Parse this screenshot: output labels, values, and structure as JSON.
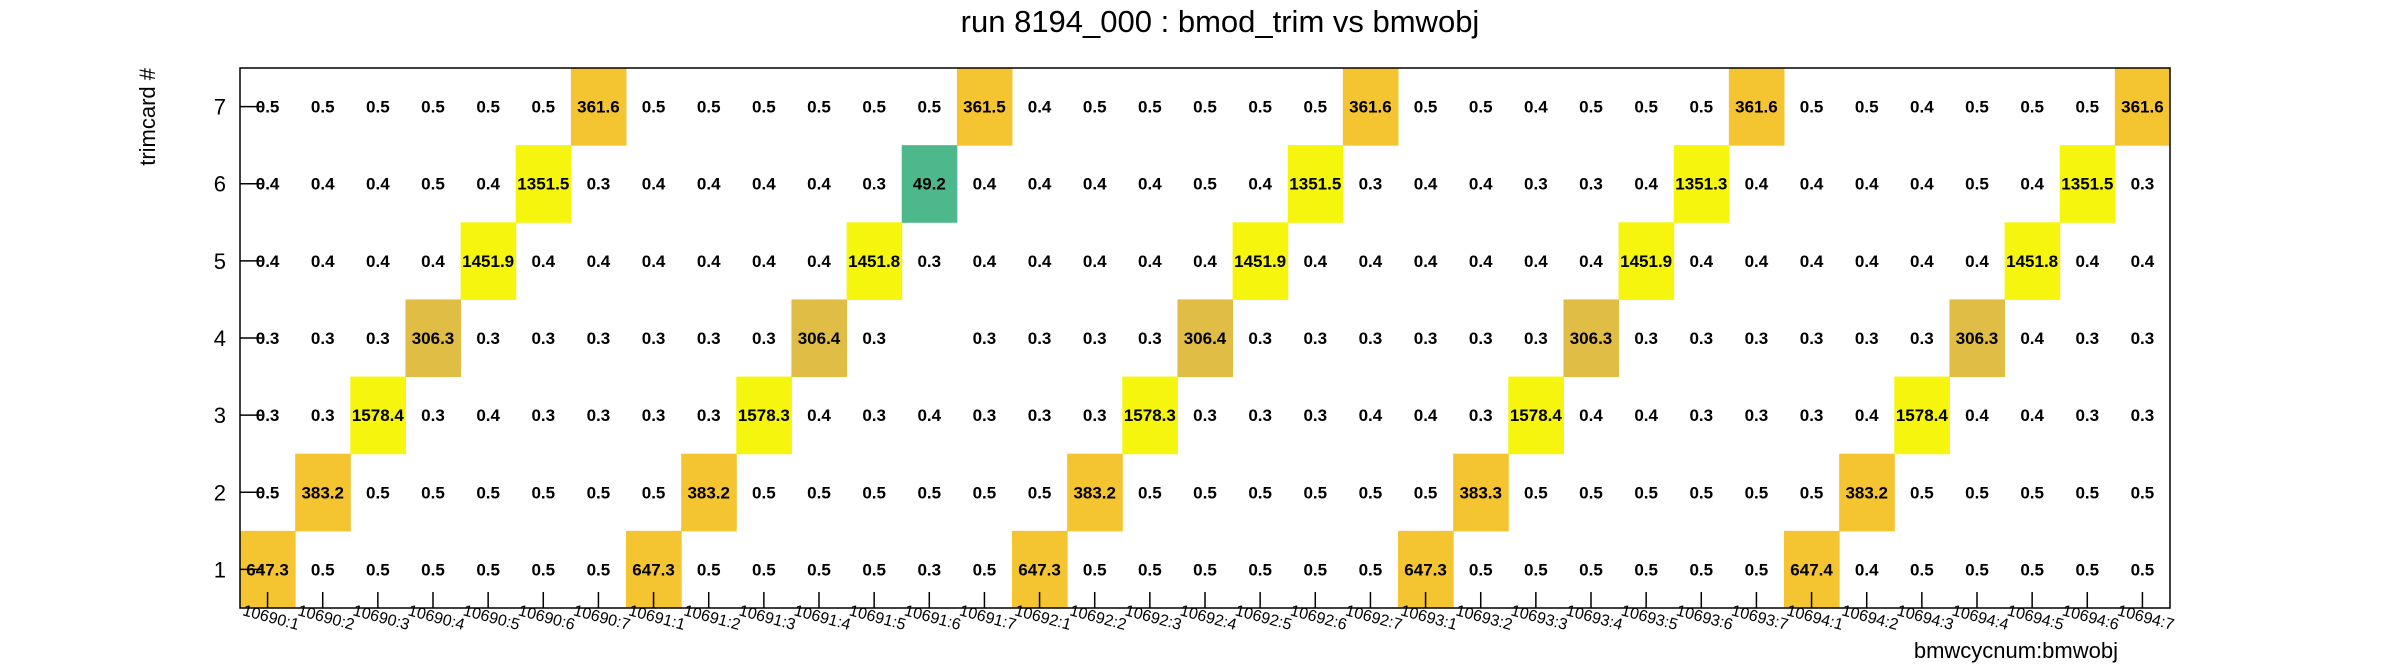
{
  "chart_data": {
    "type": "heatmap",
    "title": "run 8194_000 : bmod_trim vs bmwobj",
    "xlabel": "bmwcycnum:bmwobj",
    "ylabel": "trimcard #",
    "x_categories": [
      "10690:1",
      "10690:2",
      "10690:3",
      "10690:4",
      "10690:5",
      "10690:6",
      "10690:7",
      "10691:1",
      "10691:2",
      "10691:3",
      "10691:4",
      "10691:5",
      "10691:6",
      "10691:7",
      "10692:1",
      "10692:2",
      "10692:3",
      "10692:4",
      "10692:5",
      "10692:6",
      "10692:7",
      "10693:1",
      "10693:2",
      "10693:3",
      "10693:4",
      "10693:5",
      "10693:6",
      "10693:7",
      "10694:1",
      "10694:2",
      "10694:3",
      "10694:4",
      "10694:5",
      "10694:6",
      "10694:7"
    ],
    "y_categories": [
      "1",
      "2",
      "3",
      "4",
      "5",
      "6",
      "7"
    ],
    "rows": [
      [
        "647.3",
        "0.5",
        "0.5",
        "0.5",
        "0.5",
        "0.5",
        "0.5",
        "647.3",
        "0.5",
        "0.5",
        "0.5",
        "0.5",
        "0.3",
        "0.5",
        "647.3",
        "0.5",
        "0.5",
        "0.5",
        "0.5",
        "0.5",
        "0.5",
        "647.3",
        "0.5",
        "0.5",
        "0.5",
        "0.5",
        "0.5",
        "0.5",
        "647.4",
        "0.4",
        "0.5",
        "0.5",
        "0.5",
        "0.5",
        "0.5"
      ],
      [
        "0.5",
        "383.2",
        "0.5",
        "0.5",
        "0.5",
        "0.5",
        "0.5",
        "0.5",
        "383.2",
        "0.5",
        "0.5",
        "0.5",
        "0.5",
        "0.5",
        "0.5",
        "383.2",
        "0.5",
        "0.5",
        "0.5",
        "0.5",
        "0.5",
        "0.5",
        "383.3",
        "0.5",
        "0.5",
        "0.5",
        "0.5",
        "0.5",
        "0.5",
        "383.2",
        "0.5",
        "0.5",
        "0.5",
        "0.5",
        "0.5"
      ],
      [
        "0.3",
        "0.3",
        "1578.4",
        "0.3",
        "0.4",
        "0.3",
        "0.3",
        "0.3",
        "0.3",
        "1578.3",
        "0.4",
        "0.3",
        "0.4",
        "0.3",
        "0.3",
        "0.3",
        "1578.3",
        "0.3",
        "0.3",
        "0.3",
        "0.4",
        "0.4",
        "0.3",
        "1578.4",
        "0.4",
        "0.4",
        "0.3",
        "0.3",
        "0.3",
        "0.4",
        "1578.4",
        "0.4",
        "0.4",
        "0.3",
        "0.3"
      ],
      [
        "0.3",
        "0.3",
        "0.3",
        "306.3",
        "0.3",
        "0.3",
        "0.3",
        "0.3",
        "0.3",
        "0.3",
        "306.4",
        "0.3",
        "",
        "0.3",
        "0.3",
        "0.3",
        "0.3",
        "306.4",
        "0.3",
        "0.3",
        "0.3",
        "0.3",
        "0.3",
        "0.3",
        "306.3",
        "0.3",
        "0.3",
        "0.3",
        "0.3",
        "0.3",
        "0.3",
        "306.3",
        "0.4",
        "0.3",
        "0.3"
      ],
      [
        "0.4",
        "0.4",
        "0.4",
        "0.4",
        "1451.9",
        "0.4",
        "0.4",
        "0.4",
        "0.4",
        "0.4",
        "0.4",
        "1451.8",
        "0.3",
        "0.4",
        "0.4",
        "0.4",
        "0.4",
        "0.4",
        "1451.9",
        "0.4",
        "0.4",
        "0.4",
        "0.4",
        "0.4",
        "0.4",
        "1451.9",
        "0.4",
        "0.4",
        "0.4",
        "0.4",
        "0.4",
        "0.4",
        "1451.8",
        "0.4",
        "0.4"
      ],
      [
        "0.4",
        "0.4",
        "0.4",
        "0.5",
        "0.4",
        "1351.5",
        "0.3",
        "0.4",
        "0.4",
        "0.4",
        "0.4",
        "0.3",
        "49.2",
        "0.4",
        "0.4",
        "0.4",
        "0.4",
        "0.5",
        "0.4",
        "1351.5",
        "0.3",
        "0.4",
        "0.4",
        "0.3",
        "0.3",
        "0.4",
        "1351.3",
        "0.4",
        "0.4",
        "0.4",
        "0.4",
        "0.5",
        "0.4",
        "1351.5",
        "0.3"
      ],
      [
        "0.5",
        "0.5",
        "0.5",
        "0.5",
        "0.5",
        "0.5",
        "361.6",
        "0.5",
        "0.5",
        "0.5",
        "0.5",
        "0.5",
        "0.5",
        "361.5",
        "0.4",
        "0.5",
        "0.5",
        "0.5",
        "0.5",
        "0.5",
        "361.6",
        "0.5",
        "0.5",
        "0.4",
        "0.5",
        "0.5",
        "0.5",
        "361.6",
        "0.5",
        "0.5",
        "0.4",
        "0.5",
        "0.5",
        "0.5",
        "361.6"
      ]
    ],
    "colors": {
      "647": "#f5c431",
      "383": "#f5c431",
      "1578": "#f5f50d",
      "306": "#e0bd45",
      "1452": "#f5f50d",
      "1351": "#f5f50d",
      "49": "#4db88c",
      "361": "#f5c431"
    },
    "grid": false
  }
}
